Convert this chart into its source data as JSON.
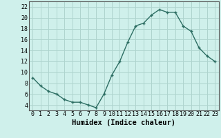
{
  "x": [
    0,
    1,
    2,
    3,
    4,
    5,
    6,
    7,
    8,
    9,
    10,
    11,
    12,
    13,
    14,
    15,
    16,
    17,
    18,
    19,
    20,
    21,
    22,
    23
  ],
  "y": [
    9,
    7.5,
    6.5,
    6,
    5,
    4.5,
    4.5,
    4,
    3.5,
    6,
    9.5,
    12,
    15.5,
    18.5,
    19,
    20.5,
    21.5,
    21,
    21,
    18.5,
    17.5,
    14.5,
    13,
    12
  ],
  "line_color": "#2d6e63",
  "marker": "+",
  "marker_size": 3,
  "marker_linewidth": 1.0,
  "bg_color": "#cff0eb",
  "grid_color": "#aed4ce",
  "xlabel": "Humidex (Indice chaleur)",
  "xlabel_fontsize": 7.5,
  "tick_fontsize": 6,
  "ylim": [
    3,
    23
  ],
  "yticks": [
    4,
    6,
    8,
    10,
    12,
    14,
    16,
    18,
    20,
    22
  ],
  "xticks": [
    0,
    1,
    2,
    3,
    4,
    5,
    6,
    7,
    8,
    9,
    10,
    11,
    12,
    13,
    14,
    15,
    16,
    17,
    18,
    19,
    20,
    21,
    22,
    23
  ],
  "linewidth": 1.0
}
